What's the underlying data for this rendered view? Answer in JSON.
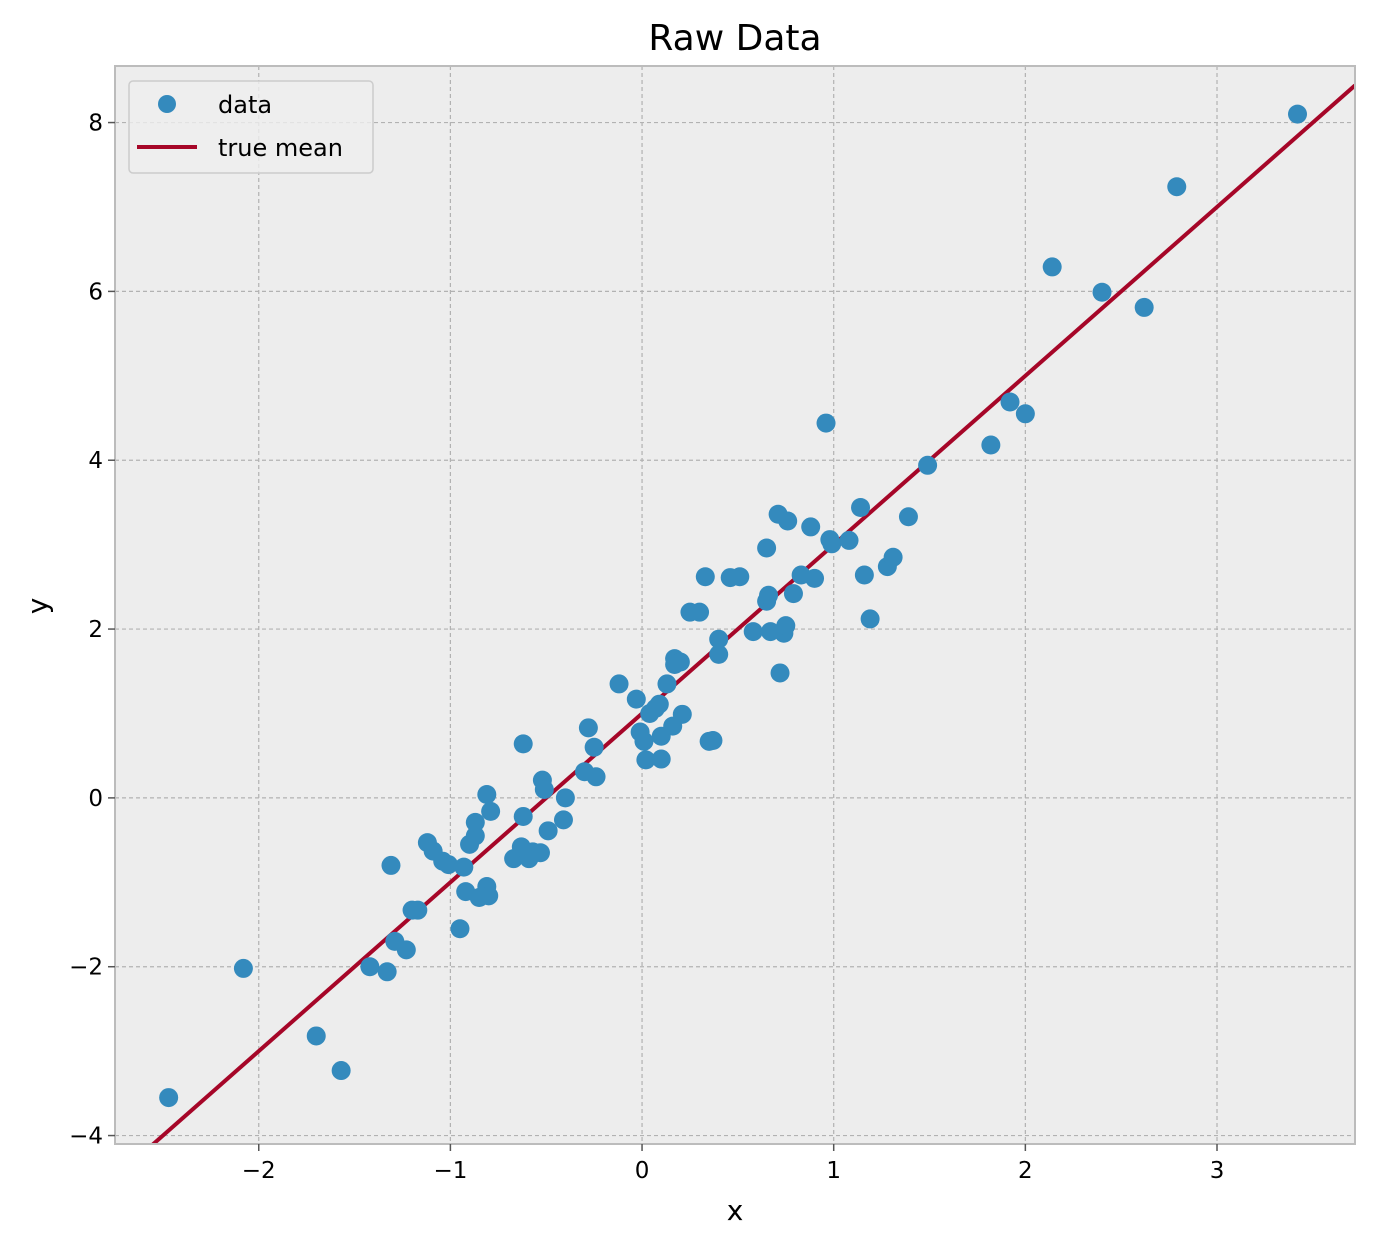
{
  "chart_data": {
    "type": "scatter",
    "title": "Raw Data",
    "xlabel": "x",
    "ylabel": "y",
    "xlim": [
      -2.75,
      3.72
    ],
    "ylim": [
      -4.1,
      8.67
    ],
    "xticks": [
      -2,
      -1,
      0,
      1,
      2,
      3
    ],
    "yticks": [
      -4,
      -2,
      0,
      2,
      4,
      6,
      8
    ],
    "xtick_labels": [
      "−2",
      "−1",
      "0",
      "1",
      "2",
      "3"
    ],
    "ytick_labels": [
      "−4",
      "−2",
      "0",
      "2",
      "4",
      "6",
      "8"
    ],
    "grid": true,
    "legend_position": "upper-left",
    "colors": {
      "background": "#ededed",
      "data": "#348abd",
      "line": "#a60628",
      "grid": "#b2b2b2",
      "frame": "#bcbcbc"
    },
    "series": [
      {
        "name": "data",
        "type": "scatter",
        "points": [
          [
            -2.47,
            -3.55
          ],
          [
            -2.08,
            -2.02
          ],
          [
            -1.7,
            -2.82
          ],
          [
            -1.57,
            -3.23
          ],
          [
            -1.42,
            -2.0
          ],
          [
            -1.33,
            -2.06
          ],
          [
            -1.31,
            -0.8
          ],
          [
            -1.29,
            -1.7
          ],
          [
            -1.23,
            -1.8
          ],
          [
            -1.2,
            -1.33
          ],
          [
            -1.17,
            -1.33
          ],
          [
            -1.12,
            -0.53
          ],
          [
            -1.09,
            -0.63
          ],
          [
            -1.04,
            -0.75
          ],
          [
            -1.01,
            -0.79
          ],
          [
            -0.95,
            -1.55
          ],
          [
            -0.93,
            -0.82
          ],
          [
            -0.92,
            -1.11
          ],
          [
            -0.9,
            -0.55
          ],
          [
            -0.87,
            -0.45
          ],
          [
            -0.87,
            -0.29
          ],
          [
            -0.85,
            -1.18
          ],
          [
            -0.81,
            0.04
          ],
          [
            -0.81,
            -1.05
          ],
          [
            -0.8,
            -1.16
          ],
          [
            -0.79,
            -0.16
          ],
          [
            -0.67,
            -0.72
          ],
          [
            -0.63,
            -0.58
          ],
          [
            -0.62,
            0.64
          ],
          [
            -0.62,
            -0.22
          ],
          [
            -0.59,
            -0.72
          ],
          [
            -0.57,
            -0.64
          ],
          [
            -0.53,
            -0.65
          ],
          [
            -0.52,
            0.21
          ],
          [
            -0.51,
            0.1
          ],
          [
            -0.49,
            -0.39
          ],
          [
            -0.41,
            -0.26
          ],
          [
            -0.4,
            0.0
          ],
          [
            -0.3,
            0.31
          ],
          [
            -0.28,
            0.83
          ],
          [
            -0.25,
            0.6
          ],
          [
            -0.24,
            0.25
          ],
          [
            -0.12,
            1.35
          ],
          [
            -0.03,
            1.17
          ],
          [
            -0.01,
            0.78
          ],
          [
            0.01,
            0.67
          ],
          [
            0.02,
            0.45
          ],
          [
            0.04,
            1.0
          ],
          [
            0.07,
            1.06
          ],
          [
            0.09,
            1.11
          ],
          [
            0.1,
            0.73
          ],
          [
            0.1,
            0.46
          ],
          [
            0.13,
            1.35
          ],
          [
            0.16,
            0.85
          ],
          [
            0.17,
            1.65
          ],
          [
            0.17,
            1.58
          ],
          [
            0.2,
            1.61
          ],
          [
            0.21,
            0.99
          ],
          [
            0.25,
            2.2
          ],
          [
            0.3,
            2.2
          ],
          [
            0.33,
            2.62
          ],
          [
            0.35,
            0.67
          ],
          [
            0.37,
            0.68
          ],
          [
            0.4,
            1.88
          ],
          [
            0.4,
            1.7
          ],
          [
            0.46,
            2.61
          ],
          [
            0.51,
            2.62
          ],
          [
            0.58,
            1.97
          ],
          [
            0.65,
            2.96
          ],
          [
            0.65,
            2.33
          ],
          [
            0.66,
            2.4
          ],
          [
            0.67,
            1.97
          ],
          [
            0.71,
            3.36
          ],
          [
            0.72,
            1.48
          ],
          [
            0.74,
            1.95
          ],
          [
            0.75,
            2.04
          ],
          [
            0.76,
            3.28
          ],
          [
            0.79,
            2.42
          ],
          [
            0.83,
            2.64
          ],
          [
            0.88,
            3.21
          ],
          [
            0.9,
            2.6
          ],
          [
            0.96,
            4.44
          ],
          [
            0.98,
            3.06
          ],
          [
            0.99,
            3.01
          ],
          [
            1.08,
            3.05
          ],
          [
            1.14,
            3.44
          ],
          [
            1.16,
            2.64
          ],
          [
            1.19,
            2.12
          ],
          [
            1.28,
            2.74
          ],
          [
            1.31,
            2.85
          ],
          [
            1.39,
            3.33
          ],
          [
            1.49,
            3.94
          ],
          [
            1.82,
            4.18
          ],
          [
            1.92,
            4.69
          ],
          [
            2.0,
            4.55
          ],
          [
            2.14,
            6.29
          ],
          [
            2.4,
            5.99
          ],
          [
            2.62,
            5.81
          ],
          [
            2.79,
            7.24
          ],
          [
            3.42,
            8.1
          ]
        ]
      },
      {
        "name": "true mean",
        "type": "line",
        "x": [
          -2.75,
          3.72
        ],
        "y": [
          -4.5,
          8.44
        ]
      }
    ]
  }
}
